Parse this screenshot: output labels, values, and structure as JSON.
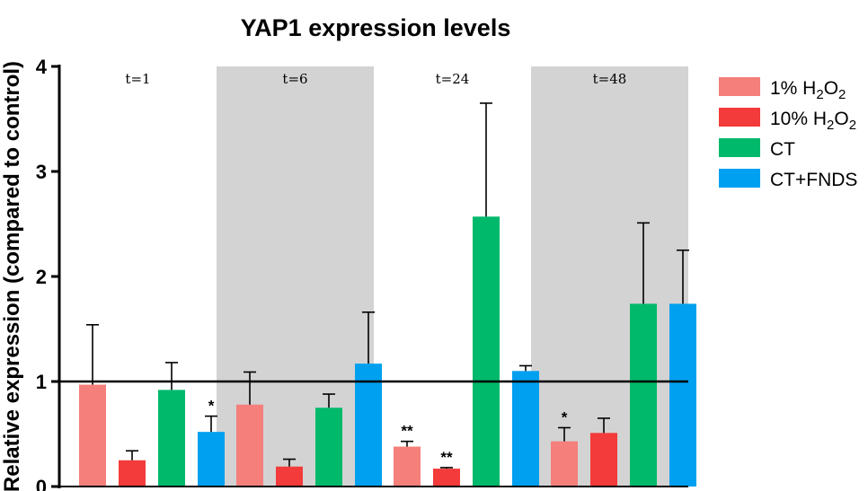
{
  "chart_data": {
    "type": "bar",
    "title": "YAP1 expression levels",
    "ylabel": "Relative expression (compared to control)",
    "xlabel": "",
    "ylim": [
      0,
      4
    ],
    "yticks": [
      0,
      1,
      2,
      3,
      4
    ],
    "reference_line": 1,
    "groups": [
      "t=1",
      "t=6",
      "t=24",
      "t=48"
    ],
    "shaded_groups": [
      false,
      true,
      false,
      true
    ],
    "series": [
      {
        "name": "1% H2O2",
        "legend_main": "1% H",
        "legend_sub1": "2",
        "legend_mid": "O",
        "legend_sub2": "2",
        "color": "#f47f7b",
        "values": [
          0.97,
          0.78,
          0.38,
          0.43
        ],
        "errors": [
          0.57,
          0.31,
          0.05,
          0.13
        ],
        "significance": [
          "",
          "",
          "**",
          "*"
        ]
      },
      {
        "name": "10% H2O2",
        "legend_main": "10% H",
        "legend_sub1": "2",
        "legend_mid": "O",
        "legend_sub2": "2",
        "color": "#f23b3a",
        "values": [
          0.25,
          0.19,
          0.17,
          0.51
        ],
        "errors": [
          0.09,
          0.07,
          0.01,
          0.14
        ],
        "significance": [
          "",
          "",
          "**",
          ""
        ]
      },
      {
        "name": "CT",
        "legend_main": "CT",
        "legend_sub1": "",
        "legend_mid": "",
        "legend_sub2": "",
        "color": "#00b96b",
        "values": [
          0.92,
          0.75,
          2.57,
          1.74
        ],
        "errors": [
          0.26,
          0.13,
          1.08,
          0.77
        ],
        "significance": [
          "",
          "",
          "",
          ""
        ]
      },
      {
        "name": "CT+FNDS",
        "legend_main": "CT+FNDS",
        "legend_sub1": "",
        "legend_mid": "",
        "legend_sub2": "",
        "color": "#00a0f0",
        "values": [
          0.52,
          1.17,
          1.1,
          1.74
        ],
        "errors": [
          0.15,
          0.49,
          0.05,
          0.51
        ],
        "significance": [
          "*",
          "",
          "",
          ""
        ]
      }
    ],
    "colors": {
      "shade": "#d3d3d3",
      "axis": "#000000"
    },
    "grid": false,
    "legend_position": "right"
  }
}
